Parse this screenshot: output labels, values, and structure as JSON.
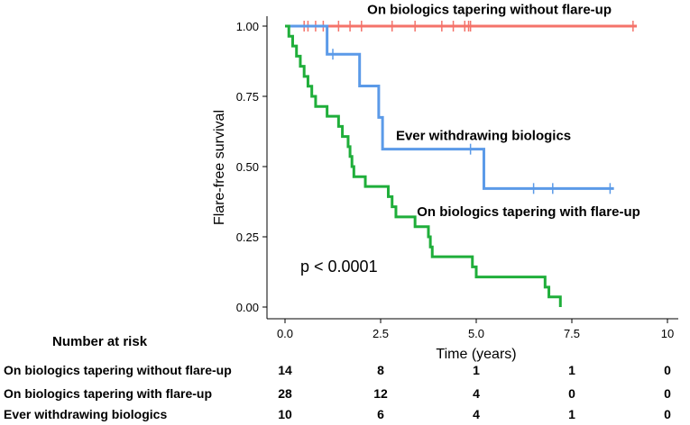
{
  "chart_data": {
    "type": "line",
    "subtype": "kaplan-meier",
    "title": "",
    "xlabel": "Time (years)",
    "ylabel": "Flare-free survival",
    "xlim": [
      0,
      10
    ],
    "ylim": [
      0,
      1
    ],
    "xticks": [
      0,
      2.5,
      5,
      7.5,
      10
    ],
    "xtick_labels": [
      "0.0",
      "2.5",
      "5.0",
      "7.5",
      "10"
    ],
    "yticks": [
      0,
      0.25,
      0.5,
      0.75,
      1.0
    ],
    "ytick_labels": [
      "0.00",
      "0.25",
      "0.50",
      "0.75",
      "1.00"
    ],
    "grid": false,
    "p_value": "p < 0.0001",
    "series": [
      {
        "name": "On biologics tapering without flare-up",
        "label": "On biologics tapering without flare-up",
        "color": "#f4736a",
        "steps": [
          [
            0,
            1.0
          ],
          [
            9.2,
            1.0
          ]
        ],
        "censor": [
          0.5,
          0.6,
          0.8,
          1.0,
          1.4,
          1.7,
          2.0,
          2.8,
          3.4,
          4.1,
          4.4,
          4.7,
          4.8,
          4.85,
          9.1
        ]
      },
      {
        "name": "Ever withdrawing biologics",
        "label": "Ever withdrawing biologics",
        "color": "#5b9ae8",
        "steps": [
          [
            0,
            1.0
          ],
          [
            1.1,
            0.9
          ],
          [
            1.95,
            0.787
          ],
          [
            2.45,
            0.675
          ],
          [
            2.55,
            0.562
          ],
          [
            5.2,
            0.422
          ],
          [
            8.6,
            0.422
          ]
        ],
        "censor": [
          1.25,
          4.85,
          6.5,
          7.0,
          8.5
        ]
      },
      {
        "name": "On biologics tapering with flare-up",
        "label": "On biologics tapering with flare-up",
        "color": "#1fae3a",
        "steps": [
          [
            0,
            1.0
          ],
          [
            0.1,
            0.964
          ],
          [
            0.2,
            0.929
          ],
          [
            0.3,
            0.893
          ],
          [
            0.4,
            0.857
          ],
          [
            0.5,
            0.821
          ],
          [
            0.6,
            0.786
          ],
          [
            0.7,
            0.75
          ],
          [
            0.8,
            0.714
          ],
          [
            1.1,
            0.679
          ],
          [
            1.4,
            0.643
          ],
          [
            1.5,
            0.607
          ],
          [
            1.65,
            0.571
          ],
          [
            1.7,
            0.536
          ],
          [
            1.75,
            0.5
          ],
          [
            1.8,
            0.464
          ],
          [
            2.1,
            0.429
          ],
          [
            2.7,
            0.393
          ],
          [
            2.8,
            0.357
          ],
          [
            2.9,
            0.321
          ],
          [
            3.4,
            0.286
          ],
          [
            3.75,
            0.25
          ],
          [
            3.8,
            0.214
          ],
          [
            3.85,
            0.179
          ],
          [
            4.9,
            0.143
          ],
          [
            5.0,
            0.107
          ],
          [
            6.8,
            0.071
          ],
          [
            6.9,
            0.036
          ],
          [
            7.2,
            0.0
          ]
        ],
        "censor": []
      }
    ],
    "annotations": [
      {
        "text": "On biologics tapering without flare-up",
        "x": 2.15,
        "y": 1.06
      },
      {
        "text": "Ever withdrawing biologics",
        "x": 2.9,
        "y": 0.61
      },
      {
        "text": "On biologics tapering with flare-up",
        "x": 3.45,
        "y": 0.34
      }
    ]
  },
  "risk_table": {
    "title": "Number at risk",
    "times": [
      0,
      2.5,
      5,
      7.5,
      10
    ],
    "rows": [
      {
        "label": "On biologics tapering without flare-up",
        "values": [
          "14",
          "8",
          "1",
          "1",
          "0"
        ]
      },
      {
        "label": "On biologics tapering with flare-up",
        "values": [
          "28",
          "12",
          "4",
          "0",
          "0"
        ]
      },
      {
        "label": "Ever withdrawing biologics",
        "values": [
          "10",
          "6",
          "4",
          "1",
          "0"
        ]
      }
    ]
  }
}
